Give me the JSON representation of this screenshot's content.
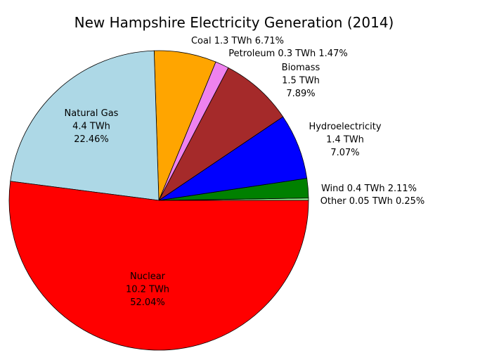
{
  "chart_data": {
    "type": "pie",
    "title": "New Hampshire Electricity Generation (2014)",
    "start_angle_deg": 0,
    "direction": "counterclockwise",
    "slices": [
      {
        "name": "Other",
        "twh": 0.05,
        "percent": 0.25,
        "color": "#90ee90",
        "label_lines": [
          "Other 0.05 TWh 0.25%"
        ]
      },
      {
        "name": "Wind",
        "twh": 0.4,
        "percent": 2.11,
        "color": "#008000",
        "label_lines": [
          "Wind 0.4 TWh 2.11%"
        ]
      },
      {
        "name": "Hydroelectricity",
        "twh": 1.4,
        "percent": 7.07,
        "color": "#0000ff",
        "label_lines": [
          "Hydroelectricity",
          "1.4 TWh",
          "7.07%"
        ]
      },
      {
        "name": "Biomass",
        "twh": 1.5,
        "percent": 7.89,
        "color": "#a52a2a",
        "label_lines": [
          "Biomass",
          "1.5 TWh",
          "7.89%"
        ]
      },
      {
        "name": "Petroleum",
        "twh": 0.3,
        "percent": 1.47,
        "color": "#ee82ee",
        "label_lines": [
          "Petroleum 0.3 TWh 1.47%"
        ]
      },
      {
        "name": "Coal",
        "twh": 1.3,
        "percent": 6.71,
        "color": "#ffa500",
        "label_lines": [
          "Coal 1.3 TWh 6.71%"
        ]
      },
      {
        "name": "Natural Gas",
        "twh": 4.4,
        "percent": 22.46,
        "color": "#add8e6",
        "label_lines": [
          "Natural Gas",
          "4.4 TWh",
          "22.46%"
        ]
      },
      {
        "name": "Nuclear",
        "twh": 10.2,
        "percent": 52.04,
        "color": "#ff0000",
        "label_lines": [
          "Nuclear",
          "10.2 TWh",
          "52.04%"
        ]
      }
    ]
  }
}
